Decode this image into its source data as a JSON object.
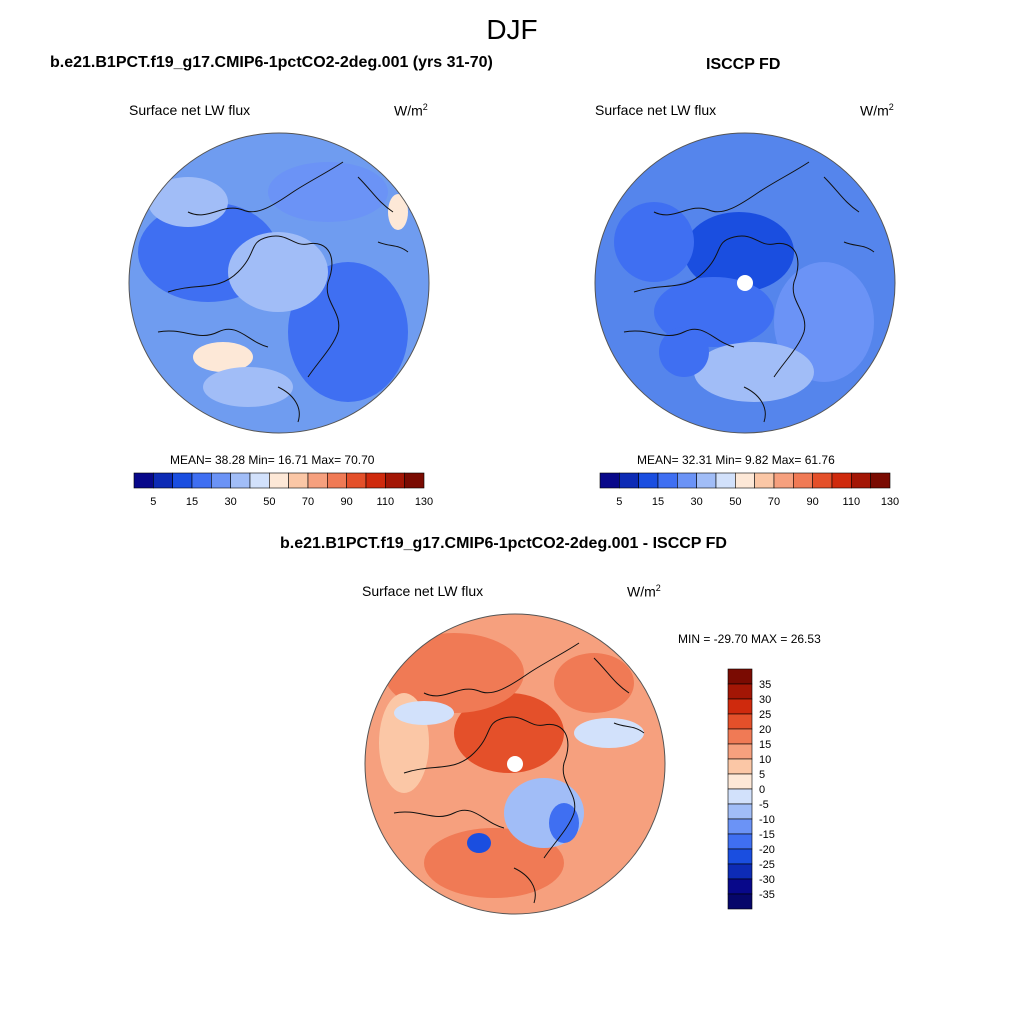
{
  "season": "DJF",
  "colors": {
    "map_edge": "#555555",
    "coast": "#111111",
    "missing": "#ffffff"
  },
  "panels": [
    {
      "id": "model",
      "title": "b.e21.B1PCT.f19_g17.CMIP6-1pctCO2-2deg.001 (yrs 31-70)",
      "variable": "Surface net LW flux",
      "units_base": "W/m",
      "units_exp": "2",
      "stats": {
        "mean": "38.28",
        "min": "16.71",
        "max": "70.70"
      },
      "stats_text": "MEAN=  38.28  Min=  16.71  Max=  70.70",
      "base_color": "#6f9cf0"
    },
    {
      "id": "obs",
      "title": "ISCCP FD",
      "variable": "Surface net LW flux",
      "units_base": "W/m",
      "units_exp": "2",
      "stats": {
        "mean": "32.31",
        "min": "9.82",
        "max": "61.76"
      },
      "stats_text": "MEAN=  32.31  Min=   9.82  Max=  61.76",
      "base_color": "#5585ec"
    },
    {
      "id": "diff",
      "title": "b.e21.B1PCT.f19_g17.CMIP6-1pctCO2-2deg.001 - ISCCP FD",
      "variable": "Surface net LW flux",
      "units_base": "W/m",
      "units_exp": "2",
      "stats_text": "MIN = -29.70 MAX =  26.53",
      "base_color": "#f6a07e"
    }
  ],
  "colorbar_abs": {
    "tick_labels": [
      "5",
      "15",
      "30",
      "50",
      "70",
      "90",
      "110",
      "130"
    ],
    "colors": [
      "#08088a",
      "#0d2bb5",
      "#1a4ee0",
      "#3f6ff2",
      "#6b93f6",
      "#a1bdf7",
      "#d2e1fb",
      "#fde8d7",
      "#fbc7a6",
      "#f6a07e",
      "#f07a55",
      "#e4502a",
      "#cf2a0d",
      "#a31605",
      "#7a0b02"
    ]
  },
  "colorbar_diff": {
    "tick_labels": [
      "35",
      "30",
      "25",
      "20",
      "15",
      "10",
      "5",
      "0",
      "-5",
      "-10",
      "-15",
      "-20",
      "-25",
      "-30",
      "-35"
    ],
    "colors": [
      "#7a0b02",
      "#a31605",
      "#cf2a0d",
      "#e4502a",
      "#f07a55",
      "#f6a07e",
      "#fbc7a6",
      "#fde8d7",
      "#d2e1fb",
      "#a1bdf7",
      "#6b93f6",
      "#3f6ff2",
      "#1a4ee0",
      "#0d2bb5",
      "#08088a",
      "#06066a"
    ]
  }
}
